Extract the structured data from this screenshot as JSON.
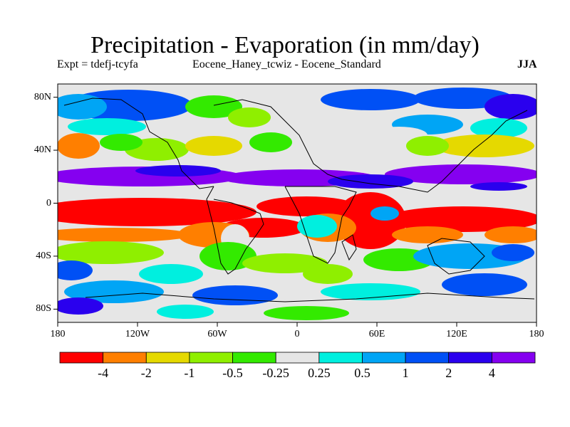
{
  "title": "Precipitation - Evaporation (in mm/day)",
  "subtitle_left": "Expt = tdefj-tcyfa",
  "subtitle_center": "Eocene_Haney_tcwiz - Eocene_Standard",
  "season": "JJA",
  "lat_labels": [
    "80N",
    "40N",
    "0",
    "40S",
    "80S"
  ],
  "lon_labels": [
    "180",
    "120W",
    "60W",
    "0",
    "60E",
    "120E",
    "180"
  ],
  "colorbar": {
    "colors": [
      "#ff0000",
      "#ff7f00",
      "#e5d900",
      "#8fef00",
      "#33ea00",
      "#e6e6e6",
      "#00efdf",
      "#00a5f5",
      "#0050f5",
      "#2a00ee",
      "#8500f0"
    ],
    "labels": [
      "-4",
      "-2",
      "-1",
      "-0.5",
      "-0.25",
      "0.25",
      "0.5",
      "1",
      "2",
      "4"
    ]
  },
  "chart_data": {
    "type": "heatmap",
    "title": "Precipitation - Evaporation (in mm/day)",
    "x_domain": [
      -180,
      180
    ],
    "y_domain": [
      -90,
      90
    ],
    "levels": [
      -4,
      -2,
      -1,
      -0.5,
      -0.25,
      0.25,
      0.5,
      1,
      2,
      4
    ],
    "bands": [
      {
        "lat": [
          60,
          90
        ],
        "category": 9,
        "description": "blue/cyan mixed high latitudes"
      },
      {
        "lat": [
          30,
          50
        ],
        "category": 2,
        "description": "yellow/orange/green midlatitudes"
      },
      {
        "lat": [
          15,
          30
        ],
        "category": 10,
        "description": "purple wet band"
      },
      {
        "lat": [
          -25,
          8
        ],
        "category": 0,
        "description": "red dry band"
      },
      {
        "lat": [
          -60,
          -30
        ],
        "category": 4,
        "description": "green/cyan southern midlatitudes"
      },
      {
        "lat": [
          -90,
          -60
        ],
        "category": 7,
        "description": "blue southern high latitudes"
      }
    ]
  }
}
